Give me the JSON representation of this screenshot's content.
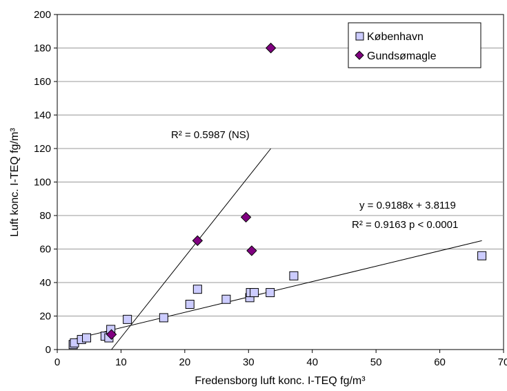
{
  "chart_data": {
    "type": "scatter",
    "xlabel": "Fredensborg luft konc.  I-TEQ fg/m³",
    "ylabel": "Luft konc.  I-TEQ fg/m³",
    "xlim": [
      0,
      70
    ],
    "ylim": [
      0,
      200
    ],
    "xticks": [
      "0",
      "10",
      "20",
      "30",
      "40",
      "50",
      "60",
      "70"
    ],
    "yticks": [
      "0",
      "20",
      "40",
      "60",
      "80",
      "100",
      "120",
      "140",
      "160",
      "180",
      "200"
    ],
    "grid": "horizontal",
    "legend_position": "top-right",
    "series": [
      {
        "name": "København",
        "marker": "square",
        "color": "#ccccff",
        "points": [
          [
            2.5,
            3
          ],
          [
            2.7,
            4
          ],
          [
            3.8,
            6
          ],
          [
            4.6,
            7
          ],
          [
            7.5,
            8
          ],
          [
            8.1,
            7
          ],
          [
            8.4,
            12
          ],
          [
            11,
            18
          ],
          [
            16.7,
            19
          ],
          [
            20.8,
            27
          ],
          [
            22,
            36
          ],
          [
            26.5,
            30
          ],
          [
            30.2,
            31
          ],
          [
            30.3,
            34
          ],
          [
            30.9,
            34
          ],
          [
            33.4,
            34
          ],
          [
            37.1,
            44
          ],
          [
            66.6,
            56
          ]
        ]
      },
      {
        "name": "Gundsømagle",
        "marker": "diamond",
        "color": "#800080",
        "points": [
          [
            8.5,
            9
          ],
          [
            22,
            65
          ],
          [
            29.6,
            79
          ],
          [
            30.5,
            59
          ],
          [
            33.5,
            180
          ]
        ]
      }
    ],
    "trendlines": [
      {
        "series": "København",
        "slope": 0.9188,
        "intercept": 3.8119,
        "x_range": [
          2.5,
          66.6
        ]
      },
      {
        "series": "Gundsømagle",
        "x_range": [
          8.5,
          33.5
        ],
        "y_range": [
          0,
          120
        ]
      }
    ],
    "annotations": {
      "gund_r2": "R² = 0.5987 (NS)",
      "kbh_eq": "y = 0.9188x + 3.8119",
      "kbh_r2": "R² = 0.9163  p < 0.0001"
    }
  }
}
